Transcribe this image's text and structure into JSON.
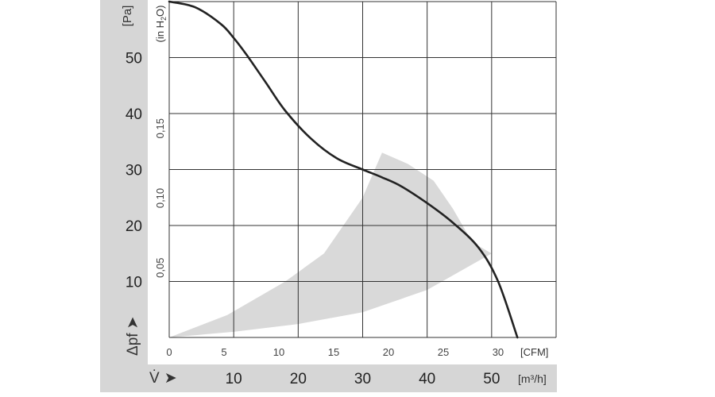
{
  "chart_data": {
    "type": "line",
    "title": "",
    "y_unit_primary": "[Pa]",
    "y_unit_secondary": "(in H2O)",
    "y_symbol": "Δpf",
    "x_symbol": "V̇",
    "x_unit_primary": "[m³/h]",
    "x_unit_secondary": "[CFM]",
    "ylim": [
      0,
      60
    ],
    "xlim": [
      0,
      60
    ],
    "grid": true,
    "y_ticks_primary": [
      "10",
      "20",
      "30",
      "40",
      "50"
    ],
    "y_ticks_primary_values": [
      10,
      20,
      30,
      40,
      50
    ],
    "y_ticks_secondary": [
      "0,05",
      "0,10",
      "0,15"
    ],
    "y_ticks_secondary_values": [
      12.45,
      24.9,
      37.35
    ],
    "x_ticks_primary": [
      "10",
      "20",
      "30",
      "40",
      "50"
    ],
    "x_ticks_primary_values": [
      10,
      20,
      30,
      40,
      50
    ],
    "x_ticks_secondary": [
      "0",
      "5",
      "10",
      "15",
      "20",
      "25",
      "30"
    ],
    "x_ticks_secondary_values": [
      0,
      8.5,
      17,
      25.5,
      34,
      42.5,
      51
    ],
    "series": [
      {
        "values_x": [
          0,
          4,
          8,
          10,
          12,
          15,
          18,
          22,
          26,
          30,
          33,
          36,
          40,
          44,
          48,
          51,
          54
        ],
        "values_y": [
          60,
          59,
          56,
          53.5,
          50.5,
          45.5,
          40.5,
          35.5,
          32,
          30,
          28.6,
          27,
          24,
          20.5,
          16,
          10,
          0
        ],
        "color": "#222222"
      }
    ],
    "operating_area": {
      "color": "#d9d9d9",
      "upper_x": [
        0,
        9,
        18,
        24,
        30,
        33
      ],
      "upper_y": [
        0,
        4,
        10,
        15,
        25,
        33
      ],
      "right_x": [
        33,
        37,
        41,
        44,
        47,
        50
      ],
      "right_y": [
        33,
        31,
        28,
        23,
        17,
        15
      ],
      "lower_x": [
        50,
        40,
        30,
        20,
        10,
        0
      ],
      "lower_y": [
        15,
        8.5,
        4.5,
        2.4,
        1.0,
        0
      ]
    }
  }
}
